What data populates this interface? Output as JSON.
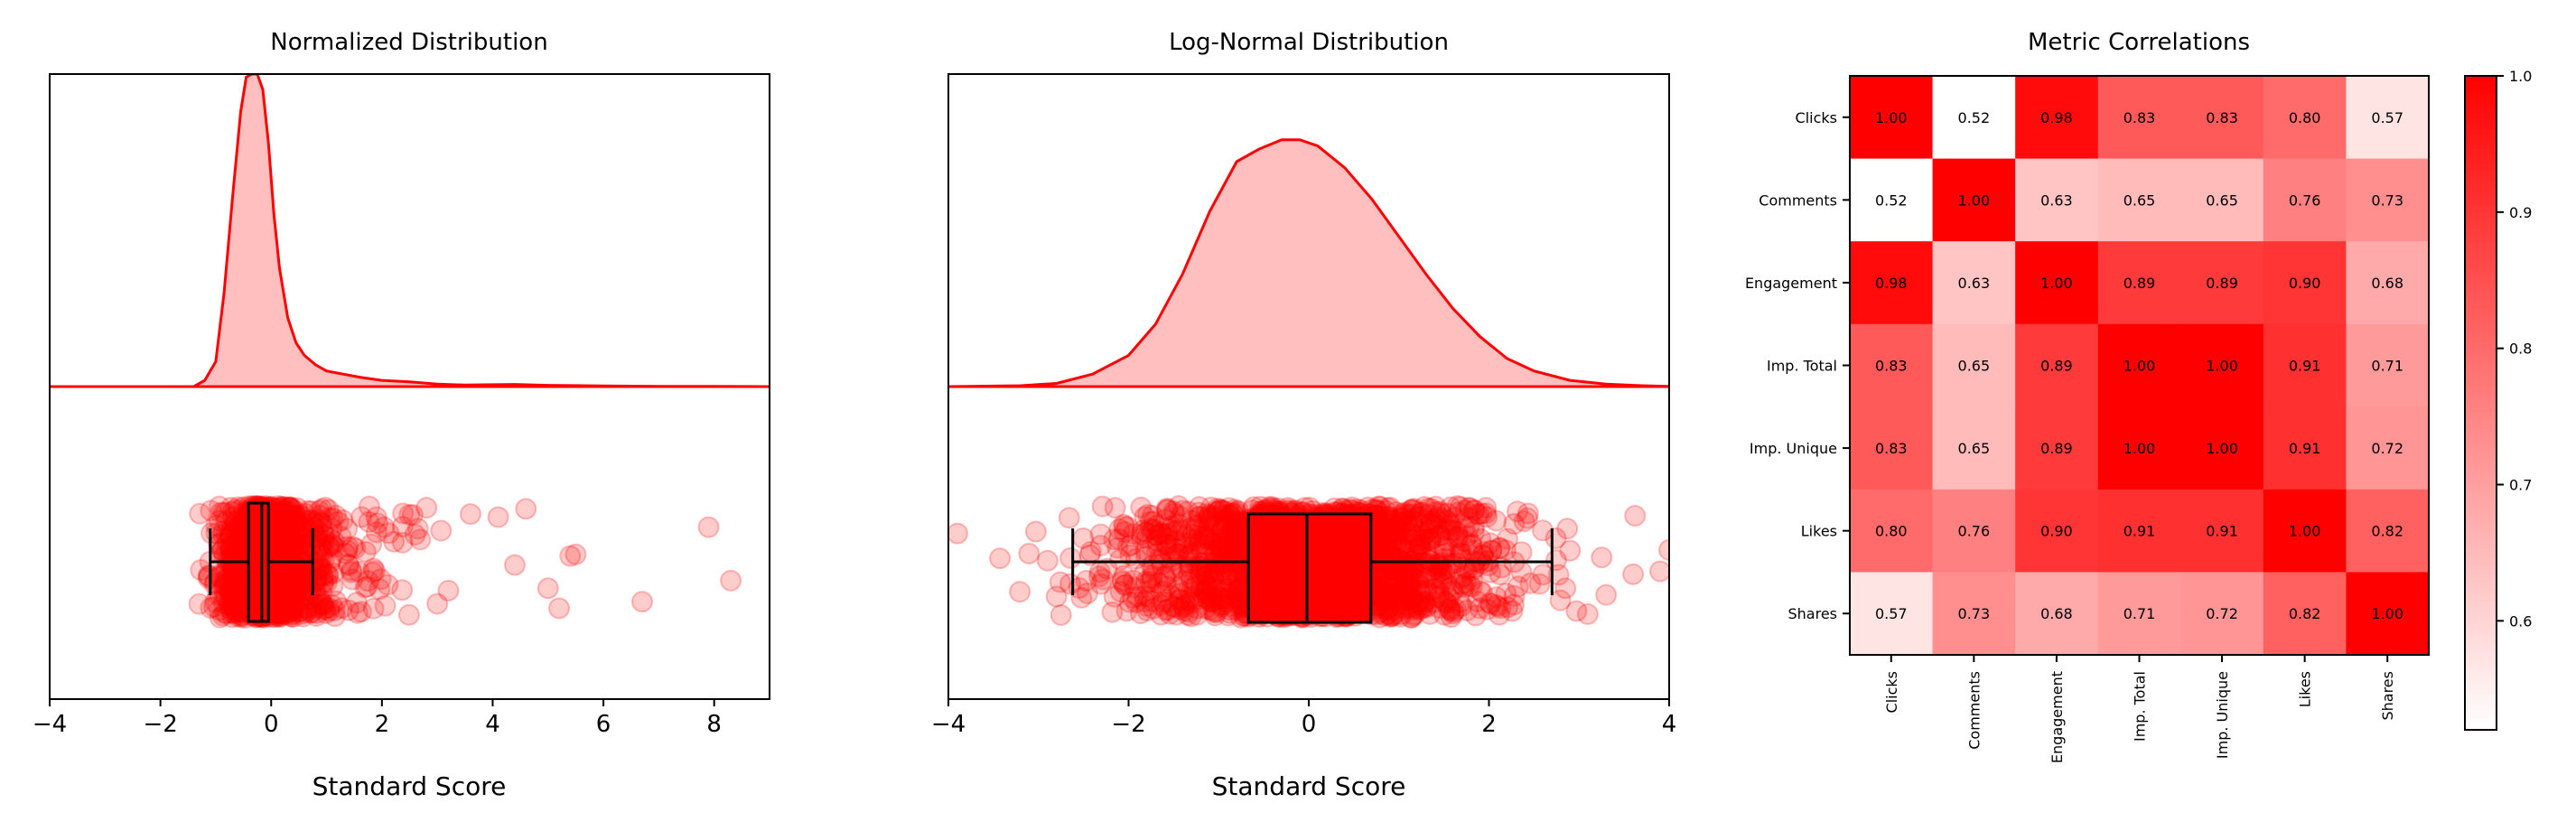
{
  "colors": {
    "accent": "#ff0000",
    "fill": "#ffbfbf",
    "axis": "#000000"
  },
  "chart_data": [
    {
      "type": "density+box+strip",
      "title": "Normalized Distribution",
      "xlabel": "Standard Score",
      "xlim": [
        -4,
        9
      ],
      "xticks": [
        -4,
        -2,
        0,
        2,
        4,
        6,
        8
      ],
      "xtick_labels": [
        "−4",
        "−2",
        "0",
        "2",
        "4",
        "6",
        "8"
      ],
      "kde": {
        "x": [
          -4,
          -1.4,
          -1.2,
          -1.0,
          -0.85,
          -0.7,
          -0.55,
          -0.45,
          -0.35,
          -0.25,
          -0.15,
          -0.05,
          0.05,
          0.15,
          0.3,
          0.45,
          0.6,
          0.8,
          1.0,
          1.3,
          1.6,
          2.0,
          2.5,
          3.0,
          3.5,
          4.0,
          4.4,
          5.0,
          6.0,
          7.0,
          8.0,
          9.0
        ],
        "density_relative": [
          0,
          0.0,
          0.02,
          0.08,
          0.3,
          0.6,
          0.88,
          0.99,
          1.0,
          1.0,
          0.95,
          0.78,
          0.55,
          0.38,
          0.22,
          0.14,
          0.1,
          0.07,
          0.05,
          0.04,
          0.03,
          0.02,
          0.015,
          0.008,
          0.005,
          0.006,
          0.007,
          0.004,
          0.002,
          0.001,
          0.001,
          0
        ]
      },
      "box": {
        "whisker_low": -1.1,
        "q1": -0.41,
        "median": -0.17,
        "q3": -0.05,
        "whisker_high": 0.75
      },
      "strip": {
        "n": 1400,
        "center": -0.2,
        "spread": 0.35,
        "tail_scale": 1.1,
        "outliers": [
          3.6,
          3.0,
          2.6,
          4.1,
          4.4,
          4.6,
          5.0,
          5.2,
          5.4,
          5.5,
          6.7,
          7.9,
          8.3,
          -1.3
        ]
      }
    },
    {
      "type": "density+box+strip",
      "title": "Log-Normal Distribution",
      "xlabel": "Standard Score",
      "xlim": [
        -4,
        4
      ],
      "xticks": [
        -4,
        -2,
        0,
        2,
        4
      ],
      "xtick_labels": [
        "−4",
        "−2",
        "0",
        "2",
        "4"
      ],
      "kde": {
        "x": [
          -4,
          -3.2,
          -2.8,
          -2.4,
          -2.0,
          -1.7,
          -1.4,
          -1.1,
          -0.8,
          -0.55,
          -0.3,
          -0.1,
          0.1,
          0.4,
          0.7,
          1.0,
          1.3,
          1.6,
          1.9,
          2.2,
          2.5,
          2.9,
          3.3,
          3.7,
          4.0
        ],
        "density_relative": [
          0,
          0.003,
          0.01,
          0.04,
          0.1,
          0.2,
          0.36,
          0.56,
          0.72,
          0.76,
          0.79,
          0.79,
          0.77,
          0.7,
          0.6,
          0.48,
          0.36,
          0.25,
          0.16,
          0.09,
          0.05,
          0.02,
          0.008,
          0.003,
          0.001
        ]
      },
      "box": {
        "whisker_low": -2.62,
        "q1": -0.67,
        "median": -0.02,
        "q3": 0.69,
        "whisker_high": 2.7
      },
      "strip": {
        "n": 2000,
        "center": 0,
        "spread": 1.0,
        "tail_scale": 0,
        "outliers": [
          -3.9,
          -2.8,
          -2.75,
          2.9,
          3.3,
          3.6,
          3.9,
          4.0
        ]
      }
    },
    {
      "type": "heatmap",
      "title": "Metric Correlations",
      "labels": [
        "Clicks",
        "Comments",
        "Engagement",
        "Imp. Total",
        "Imp. Unique",
        "Likes",
        "Shares"
      ],
      "values": [
        [
          1.0,
          0.52,
          0.98,
          0.83,
          0.83,
          0.8,
          0.57
        ],
        [
          0.52,
          1.0,
          0.63,
          0.65,
          0.65,
          0.76,
          0.73
        ],
        [
          0.98,
          0.63,
          1.0,
          0.89,
          0.89,
          0.9,
          0.68
        ],
        [
          0.83,
          0.65,
          0.89,
          1.0,
          1.0,
          0.91,
          0.71
        ],
        [
          0.83,
          0.65,
          0.89,
          1.0,
          1.0,
          0.91,
          0.72
        ],
        [
          0.8,
          0.76,
          0.9,
          0.91,
          0.91,
          1.0,
          0.82
        ],
        [
          0.57,
          0.73,
          0.68,
          0.71,
          0.72,
          0.82,
          1.0
        ]
      ],
      "value_labels": [
        [
          "1.00",
          "0.52",
          "0.98",
          "0.83",
          "0.83",
          "0.80",
          "0.57"
        ],
        [
          "0.52",
          "1.00",
          "0.63",
          "0.65",
          "0.65",
          "0.76",
          "0.73"
        ],
        [
          "0.98",
          "0.63",
          "1.00",
          "0.89",
          "0.89",
          "0.90",
          "0.68"
        ],
        [
          "0.83",
          "0.65",
          "0.89",
          "1.00",
          "1.00",
          "0.91",
          "0.71"
        ],
        [
          "0.83",
          "0.65",
          "0.89",
          "1.00",
          "1.00",
          "0.91",
          "0.72"
        ],
        [
          "0.80",
          "0.76",
          "0.90",
          "0.91",
          "0.91",
          "1.00",
          "0.82"
        ],
        [
          "0.57",
          "0.73",
          "0.68",
          "0.71",
          "0.72",
          "0.82",
          "1.00"
        ]
      ],
      "colorbar": {
        "vmin": 0.52,
        "vmax": 1.0,
        "ticks": [
          0.6,
          0.7,
          0.8,
          0.9,
          1.0
        ],
        "tick_labels": [
          "0.6",
          "0.7",
          "0.8",
          "0.9",
          "1.0"
        ],
        "colormap": [
          "#ffffff",
          "#ff0000"
        ]
      }
    }
  ]
}
